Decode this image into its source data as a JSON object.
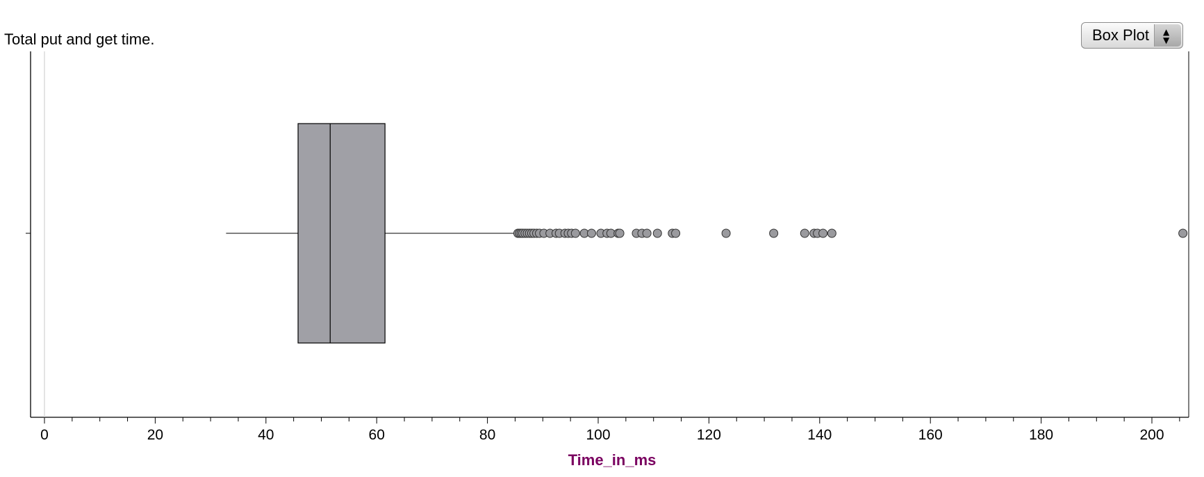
{
  "chart_data": {
    "type": "box",
    "title": "Total put and get time.",
    "xlabel": "Time_in_ms",
    "xlim": [
      -2,
      206
    ],
    "ticks": [
      0,
      20,
      40,
      60,
      80,
      100,
      120,
      140,
      160,
      180,
      200
    ],
    "minor_tick_step": 5,
    "box": {
      "whisker_low": 32.8,
      "q1": 45.8,
      "median": 51.6,
      "q3": 61.5,
      "whisker_high": 85.5
    },
    "outliers": [
      85.5,
      85.8,
      86.1,
      86.4,
      86.8,
      87.2,
      87.6,
      88.0,
      88.4,
      88.9,
      89.4,
      90.2,
      91.3,
      92.4,
      93.0,
      94.0,
      94.6,
      95.2,
      95.9,
      97.5,
      98.8,
      100.5,
      101.6,
      102.3,
      103.6,
      103.9,
      106.9,
      107.9,
      108.8,
      110.7,
      113.4,
      114.0,
      123.1,
      131.7,
      137.3,
      139.0,
      139.6,
      140.6,
      142.2,
      205.6
    ],
    "box_color": "#a0a0a6",
    "outlier_color": "#9a9a9e",
    "xlabel_color": "#7a0060",
    "grid": false
  },
  "controls": {
    "plot_type": "Box Plot",
    "stepper_up": "▲",
    "stepper_down": "▼"
  }
}
